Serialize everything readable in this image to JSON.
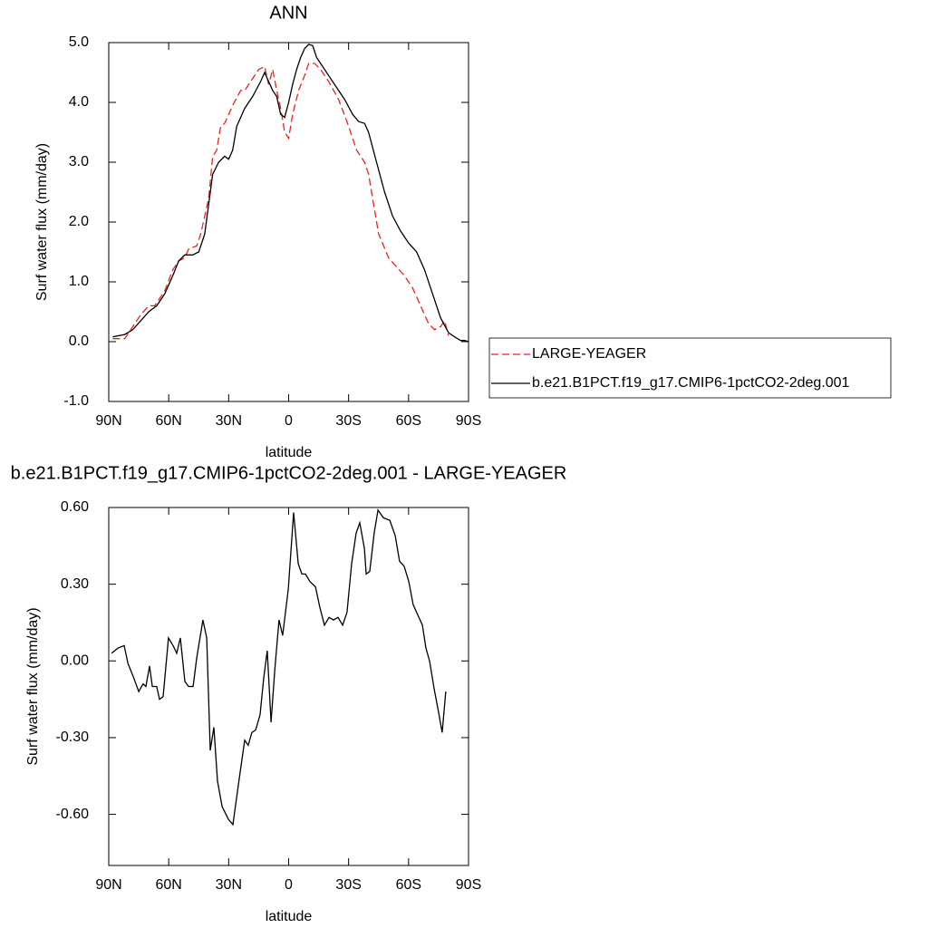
{
  "chart_data": [
    {
      "type": "line",
      "title": "ANN",
      "xlabel": "latitude",
      "ylabel": "Surf water flux (mm/day)",
      "xlim": [
        90,
        -90
      ],
      "ylim": [
        -1,
        5
      ],
      "xticks": [
        {
          "value": 90,
          "label": "90N"
        },
        {
          "value": 60,
          "label": "60N"
        },
        {
          "value": 30,
          "label": "30N"
        },
        0,
        {
          "value": -30,
          "label": "30S"
        },
        {
          "value": -60,
          "label": "60S"
        },
        {
          "value": -90,
          "label": "90S"
        }
      ],
      "yticks": [
        {
          "value": -1,
          "label": "-1.0"
        },
        {
          "value": 0,
          "label": "0.0"
        },
        {
          "value": 1,
          "label": "1.0"
        },
        {
          "value": 2,
          "label": "2.0"
        },
        {
          "value": 3,
          "label": "3.0"
        },
        {
          "value": 4,
          "label": "4.0"
        },
        {
          "value": 5,
          "label": "5.0"
        }
      ],
      "legend": "right",
      "series": [
        {
          "name": "LARGE-YEAGER",
          "color": "#e8261f",
          "dashed": true,
          "x": [
            88,
            82,
            78,
            74,
            70,
            67,
            62,
            58,
            55,
            52,
            50,
            46,
            44,
            40,
            38,
            36,
            34,
            32,
            28,
            24,
            22,
            18,
            15,
            12,
            10,
            8,
            6,
            4,
            2,
            0,
            -2,
            -5,
            -8,
            -10,
            -13,
            -16,
            -20,
            -25,
            -30,
            -34,
            -38,
            -40,
            -42,
            -45,
            -50,
            -54,
            -58,
            -62,
            -66,
            -70,
            -73,
            -76,
            -78,
            -80
          ],
          "values": [
            0.05,
            0.05,
            0.25,
            0.45,
            0.6,
            0.6,
            0.85,
            1.2,
            1.35,
            1.4,
            1.55,
            1.6,
            1.8,
            2.4,
            3.1,
            3.2,
            3.6,
            3.65,
            3.95,
            4.2,
            4.2,
            4.4,
            4.55,
            4.6,
            4.3,
            4.55,
            4.2,
            3.9,
            3.5,
            3.4,
            3.8,
            4.2,
            4.45,
            4.65,
            4.65,
            4.55,
            4.35,
            4.05,
            3.6,
            3.2,
            3.0,
            2.8,
            2.4,
            1.8,
            1.4,
            1.25,
            1.1,
            0.9,
            0.6,
            0.3,
            0.2,
            0.25,
            0.35,
            0.1
          ]
        },
        {
          "name": "b.e21.B1PCT.f19_g17.CMIP6-1pctCO2-2deg.001",
          "color": "#000000",
          "dashed": false,
          "x": [
            88,
            82,
            78,
            74,
            70,
            66,
            62,
            58,
            55,
            52,
            48,
            45,
            42,
            40,
            38,
            35,
            32,
            30,
            28,
            26,
            22,
            18,
            14,
            12,
            10,
            8,
            6,
            4,
            2,
            0,
            -2,
            -4,
            -6,
            -8,
            -10,
            -12,
            -14,
            -17,
            -20,
            -24,
            -28,
            -32,
            -35,
            -38,
            -40,
            -44,
            -48,
            -52,
            -56,
            -60,
            -64,
            -68,
            -72,
            -76,
            -80,
            -83,
            -86,
            -88,
            -90
          ],
          "values": [
            0.08,
            0.12,
            0.2,
            0.35,
            0.5,
            0.6,
            0.8,
            1.1,
            1.35,
            1.45,
            1.45,
            1.5,
            1.8,
            2.3,
            2.8,
            3.0,
            3.1,
            3.05,
            3.2,
            3.6,
            3.9,
            4.1,
            4.35,
            4.5,
            4.35,
            4.2,
            4.1,
            3.8,
            3.75,
            4.0,
            4.3,
            4.55,
            4.75,
            4.9,
            4.97,
            4.95,
            4.75,
            4.6,
            4.45,
            4.25,
            4.05,
            3.8,
            3.68,
            3.65,
            3.5,
            3.0,
            2.5,
            2.1,
            1.85,
            1.65,
            1.5,
            1.2,
            0.8,
            0.4,
            0.15,
            0.08,
            0.02,
            0.02,
            0.0
          ]
        }
      ]
    },
    {
      "type": "line",
      "title": "b.e21.B1PCT.f19_g17.CMIP6-1pctCO2-2deg.001 - LARGE-YEAGER",
      "xlabel": "latitude",
      "ylabel": "Surf water flux (mm/day)",
      "xlim": [
        90,
        -90
      ],
      "ylim": [
        -0.8,
        0.6
      ],
      "xticks": [
        {
          "value": 90,
          "label": "90N"
        },
        {
          "value": 60,
          "label": "60N"
        },
        {
          "value": 30,
          "label": "30N"
        },
        0,
        {
          "value": -30,
          "label": "30S"
        },
        {
          "value": -60,
          "label": "60S"
        },
        {
          "value": -90,
          "label": "90S"
        }
      ],
      "yticks": [
        {
          "value": -0.6,
          "label": "-0.60"
        },
        {
          "value": -0.3,
          "label": "-0.30"
        },
        {
          "value": 0,
          "label": "0.00"
        },
        {
          "value": 0.3,
          "label": "0.30"
        },
        {
          "value": 0.6,
          "label": "0.60"
        }
      ],
      "series": [
        {
          "color": "#000000",
          "dashed": false,
          "x": [
            88.6,
            85.4,
            82.3,
            80.4,
            77.8,
            75,
            72.8,
            71.4,
            69.6,
            68.2,
            66,
            64.6,
            62.8,
            60.1,
            57.8,
            56,
            54.2,
            51.9,
            50.1,
            47.8,
            46,
            42.9,
            41,
            39.2,
            37.4,
            35.6,
            33.3,
            30.1,
            27.9,
            24.7,
            22,
            20.2,
            18.4,
            16.5,
            14.3,
            12.5,
            10.7,
            8.8,
            7,
            4.8,
            3,
            0.2,
            -2.5,
            -4.8,
            -6.6,
            -8.4,
            -10.7,
            -13.4,
            -15.6,
            -17.9,
            -20.2,
            -22.4,
            -24.7,
            -27,
            -29.2,
            -31.5,
            -33.8,
            -35.6,
            -37.9,
            -38.8,
            -40.6,
            -42.8,
            -44.7,
            -47.4,
            -50.6,
            -53.3,
            -55.5,
            -57.8,
            -60.1,
            -62.3,
            -64.6,
            -66.9,
            -68.7,
            -70.5,
            -72.8,
            -75,
            -76.8,
            -78.6
          ],
          "values": [
            0.03,
            0.05,
            0.06,
            -0.01,
            -0.06,
            -0.12,
            -0.09,
            -0.1,
            -0.02,
            -0.1,
            -0.1,
            -0.15,
            -0.14,
            0.09,
            0.06,
            0.03,
            0.09,
            -0.08,
            -0.1,
            -0.1,
            0.01,
            0.16,
            0.09,
            -0.35,
            -0.26,
            -0.47,
            -0.57,
            -0.62,
            -0.64,
            -0.46,
            -0.31,
            -0.33,
            -0.28,
            -0.27,
            -0.21,
            -0.07,
            0.04,
            -0.24,
            -0.04,
            0.16,
            0.1,
            0.28,
            0.58,
            0.38,
            0.34,
            0.34,
            0.31,
            0.29,
            0.21,
            0.14,
            0.17,
            0.16,
            0.17,
            0.14,
            0.19,
            0.38,
            0.5,
            0.54,
            0.44,
            0.34,
            0.35,
            0.5,
            0.59,
            0.56,
            0.55,
            0.49,
            0.39,
            0.37,
            0.31,
            0.22,
            0.18,
            0.14,
            0.05,
            0,
            -0.11,
            -0.2,
            -0.28,
            -0.12
          ]
        }
      ]
    }
  ]
}
